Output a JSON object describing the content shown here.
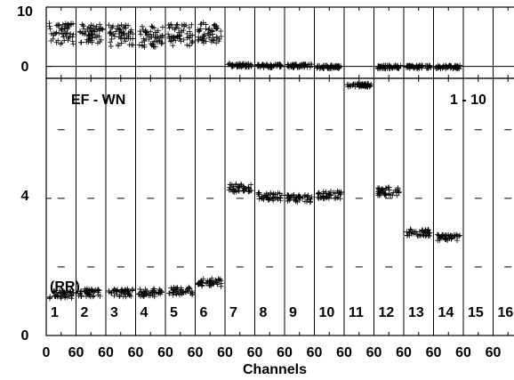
{
  "chart_data": {
    "type": "scatter",
    "xlabel": "Channels",
    "top_panel": {
      "ylim": [
        -2,
        10
      ],
      "ytick_labels": [
        "10",
        "0"
      ],
      "ytick_values": [
        10,
        0
      ],
      "reference_line": 0,
      "series": [
        {
          "channel": 1,
          "mean": 5.5,
          "spread": 1.8
        },
        {
          "channel": 2,
          "mean": 5.3,
          "spread": 1.8
        },
        {
          "channel": 3,
          "mean": 5.2,
          "spread": 1.8
        },
        {
          "channel": 4,
          "mean": 5.0,
          "spread": 1.8
        },
        {
          "channel": 5,
          "mean": 5.3,
          "spread": 1.8
        },
        {
          "channel": 6,
          "mean": 5.6,
          "spread": 1.8
        },
        {
          "channel": 7,
          "mean": 0.2,
          "spread": 0.3
        },
        {
          "channel": 8,
          "mean": 0.1,
          "spread": 0.3
        },
        {
          "channel": 9,
          "mean": 0.1,
          "spread": 0.3
        },
        {
          "channel": 10,
          "mean": -0.1,
          "spread": 0.3
        },
        {
          "channel": 11,
          "mean": -3.2,
          "spread": 0.3
        },
        {
          "channel": 12,
          "mean": -0.1,
          "spread": 0.3
        },
        {
          "channel": 13,
          "mean": -0.1,
          "spread": 0.3
        },
        {
          "channel": 14,
          "mean": -0.1,
          "spread": 0.3
        }
      ]
    },
    "bottom_panel": {
      "ylim": [
        0,
        7.5
      ],
      "ytick_labels": [
        "4",
        "0"
      ],
      "ytick_values": [
        4,
        0
      ],
      "series": [
        {
          "channel": 1,
          "mean": 1.2,
          "spread": 0.12
        },
        {
          "channel": 2,
          "mean": 1.25,
          "spread": 0.12
        },
        {
          "channel": 3,
          "mean": 1.25,
          "spread": 0.12
        },
        {
          "channel": 4,
          "mean": 1.25,
          "spread": 0.12
        },
        {
          "channel": 5,
          "mean": 1.3,
          "spread": 0.12
        },
        {
          "channel": 6,
          "mean": 1.55,
          "spread": 0.12
        },
        {
          "channel": 7,
          "mean": 4.3,
          "spread": 0.12
        },
        {
          "channel": 8,
          "mean": 4.05,
          "spread": 0.12
        },
        {
          "channel": 9,
          "mean": 4.0,
          "spread": 0.12
        },
        {
          "channel": 10,
          "mean": 4.1,
          "spread": 0.12
        },
        {
          "channel": 12,
          "mean": 4.2,
          "spread": 0.12
        },
        {
          "channel": 13,
          "mean": 3.0,
          "spread": 0.1
        },
        {
          "channel": 14,
          "mean": 2.85,
          "spread": 0.1
        }
      ]
    },
    "channel_labels": [
      "1",
      "2",
      "3",
      "4",
      "5",
      "6",
      "7",
      "8",
      "9",
      "10",
      "11",
      "12",
      "13",
      "14",
      "15",
      "16"
    ],
    "x_tick_labels": [
      "0",
      "60",
      "60",
      "60",
      "60",
      "60",
      "60",
      "60",
      "60",
      "60",
      "60",
      "60",
      "60",
      "60",
      "60",
      "60",
      "6"
    ],
    "annotations": {
      "left": "EF - WN",
      "right": "1 - 10",
      "unit": "(RR)"
    }
  }
}
